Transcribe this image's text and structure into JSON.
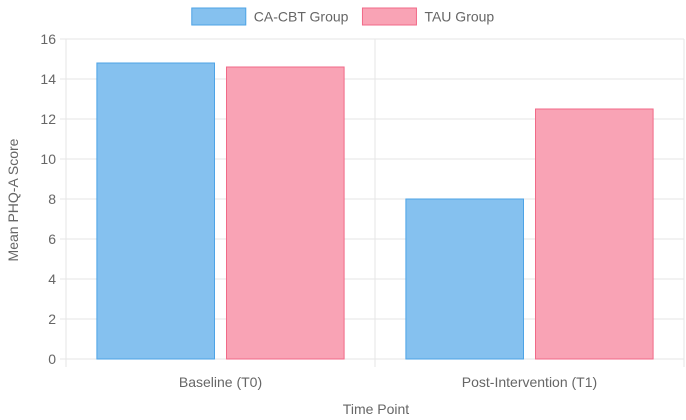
{
  "chart_data": {
    "type": "bar",
    "categories": [
      "Baseline (T0)",
      "Post-Intervention (T1)"
    ],
    "series": [
      {
        "name": "CA-CBT Group",
        "values": [
          14.8,
          8.0
        ],
        "fill": "#85c1ef",
        "stroke": "#4da3e6"
      },
      {
        "name": "TAU Group",
        "values": [
          14.6,
          12.5
        ],
        "fill": "#f9a3b5",
        "stroke": "#f16a88"
      }
    ],
    "xlabel": "Time Point",
    "ylabel": "Mean PHQ-A Score",
    "ylim": [
      0,
      16
    ],
    "yticks": [
      0,
      2,
      4,
      6,
      8,
      10,
      12,
      14,
      16
    ],
    "grid": true,
    "legend_position": "top"
  }
}
